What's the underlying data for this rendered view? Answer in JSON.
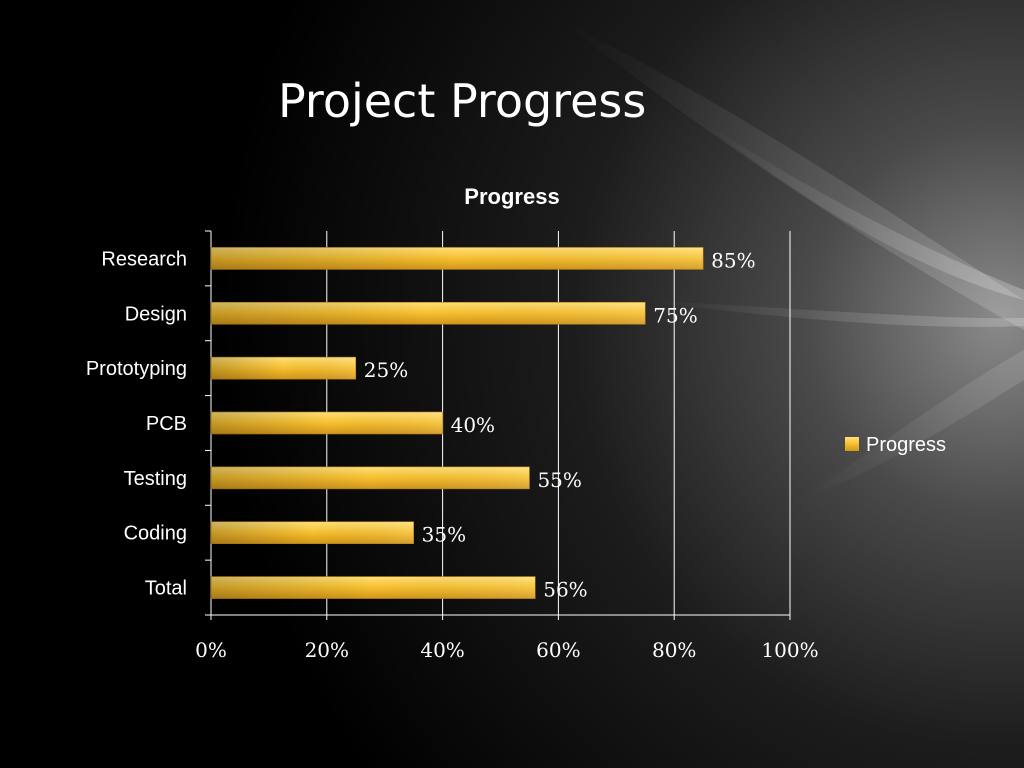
{
  "slide": {
    "title": "Project Progress"
  },
  "colors": {
    "bar_light": "#ffd24a",
    "bar_dark": "#c9901a",
    "text": "#ffffff",
    "grid": "#ffffff"
  },
  "chart_data": {
    "type": "bar",
    "orientation": "horizontal",
    "title": "Progress",
    "categories": [
      "Research",
      "Design",
      "Prototyping",
      "PCB",
      "Testing",
      "Coding",
      "Total"
    ],
    "series": [
      {
        "name": "Progress",
        "values": [
          85,
          75,
          25,
          40,
          55,
          35,
          56
        ],
        "labels": [
          "85%",
          "75%",
          "25%",
          "40%",
          "55%",
          "35%",
          "56%"
        ]
      }
    ],
    "xlim": [
      0,
      100
    ],
    "ticks": [
      "0%",
      "20%",
      "40%",
      "60%",
      "80%",
      "100%"
    ],
    "grid": true,
    "legend": "right"
  }
}
